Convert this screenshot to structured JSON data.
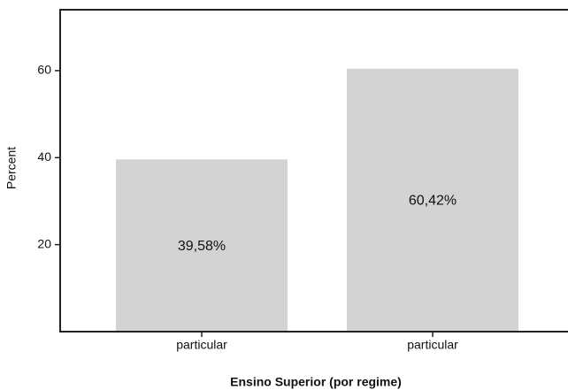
{
  "chart_data": {
    "type": "bar",
    "x_label": "Ensino Superior (por regime)",
    "y_label": "Percent",
    "categories": [
      "particular",
      "particular"
    ],
    "values": [
      39.58,
      60.42
    ],
    "value_labels": [
      "39,58%",
      "60,42%"
    ],
    "color": "#d3d3d3",
    "ylim": [
      0,
      74
    ],
    "yticks": [
      20,
      40,
      60
    ]
  }
}
